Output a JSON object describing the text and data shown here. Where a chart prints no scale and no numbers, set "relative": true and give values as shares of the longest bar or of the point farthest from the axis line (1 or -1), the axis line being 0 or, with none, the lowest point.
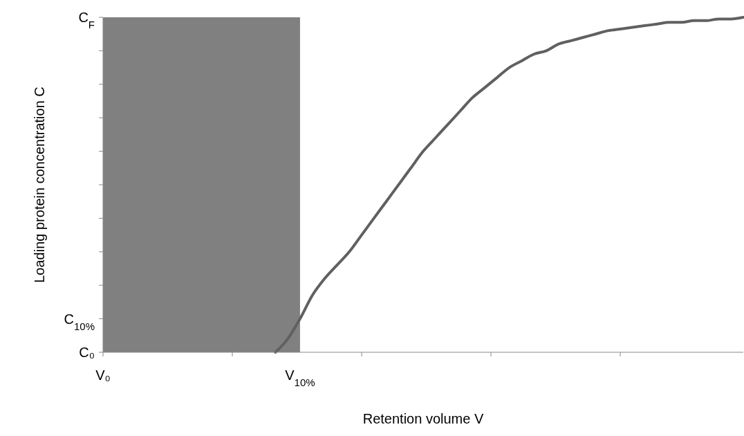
{
  "chart_data": {
    "type": "line",
    "relative": true,
    "xlabel": "Retention volume V",
    "ylabel": "Loading protein concentration C",
    "categories": [
      null,
      null,
      null,
      null,
      null,
      null,
      null,
      null,
      null,
      null,
      null,
      null,
      null,
      null,
      null,
      null,
      null,
      null,
      null,
      null,
      null,
      null,
      null,
      null,
      null,
      null,
      null,
      null,
      null,
      null,
      null,
      null,
      null,
      null,
      null,
      null,
      null,
      null,
      null,
      null,
      null,
      null,
      null,
      null,
      null,
      null,
      null,
      null,
      null,
      null,
      null,
      null,
      null
    ],
    "series": [
      {
        "type": "area",
        "color": "#808080",
        "values": [
          1,
          1,
          1,
          1,
          1,
          1,
          1,
          1,
          1,
          1,
          1,
          1,
          1,
          1,
          1,
          1,
          1,
          null,
          null,
          null,
          null,
          null,
          null,
          null,
          null,
          null,
          null,
          null,
          null,
          null,
          null,
          null,
          null,
          null,
          null,
          null,
          null,
          null,
          null,
          null,
          null,
          null,
          null,
          null,
          null,
          null,
          null,
          null,
          null,
          null,
          null,
          null,
          null
        ]
      },
      {
        "color": "#606060",
        "values": [
          null,
          null,
          null,
          null,
          null,
          null,
          null,
          null,
          null,
          null,
          null,
          null,
          null,
          null,
          0,
          0.04,
          0.1,
          0.17,
          0.22,
          0.26,
          0.3,
          0.35,
          0.4,
          0.45,
          0.5,
          0.55,
          0.6,
          0.64,
          0.68,
          0.72,
          0.76,
          0.79,
          0.82,
          0.85,
          0.87,
          0.89,
          0.9,
          0.92,
          0.93,
          0.94,
          0.95,
          0.96,
          0.965,
          0.97,
          0.975,
          0.98,
          0.985,
          0.985,
          0.99,
          0.99,
          0.995,
          0.995,
          1
        ]
      }
    ],
    "annotations": [
      "C$_{F}$",
      "C$_{10%}$",
      "C₀",
      "V₀",
      "V$_{10%}$"
    ],
    "marker": "none",
    "line_style": "solid"
  }
}
